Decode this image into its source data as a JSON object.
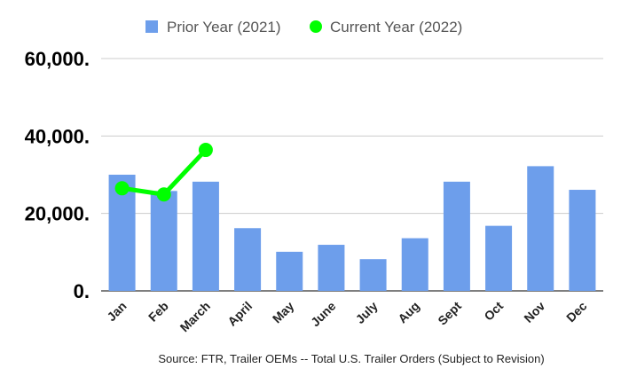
{
  "chart_data": {
    "type": "bar",
    "categories": [
      "Jan",
      "Feb",
      "March",
      "April",
      "May",
      "June",
      "July",
      "Aug",
      "Sept",
      "Oct",
      "Nov",
      "Dec"
    ],
    "series": [
      {
        "name": "Prior Year (2021)",
        "type": "bar",
        "color": "#6d9eeb",
        "values": [
          30000,
          25800,
          28200,
          16200,
          10100,
          11900,
          8200,
          13600,
          28200,
          16800,
          32200,
          26100
        ]
      },
      {
        "name": "Current Year (2022)",
        "type": "line",
        "color": "#00ff00",
        "values": [
          26500,
          24900,
          36400,
          null,
          null,
          null,
          null,
          null,
          null,
          null,
          null,
          null
        ]
      }
    ],
    "y_ticks": [
      "0.",
      "20,000.",
      "40,000.",
      "60,000."
    ],
    "y_tick_values": [
      0,
      20000,
      40000,
      60000
    ],
    "ylim": [
      0,
      60000
    ],
    "grid": true,
    "legend_position": "top",
    "source": "Source: FTR, Trailer OEMs -- Total U.S. Trailer Orders (Subject to Revision)"
  }
}
